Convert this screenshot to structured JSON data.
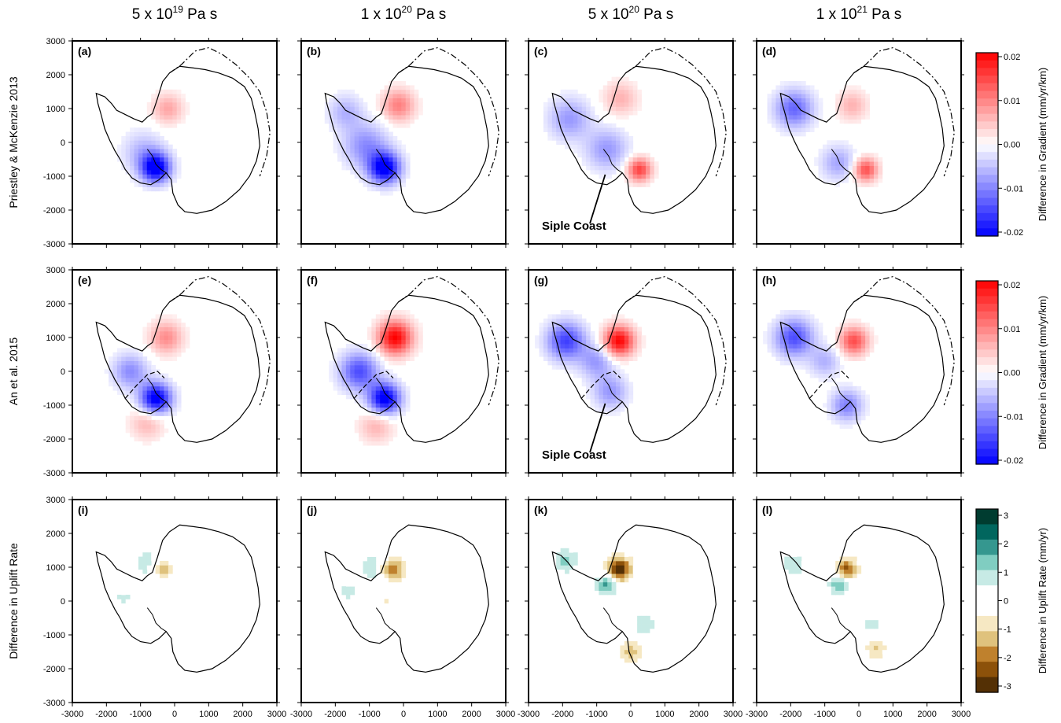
{
  "chart_data": {
    "type": "heatmap",
    "x_ticks": [
      -3000,
      -2000,
      -1000,
      0,
      1000,
      2000,
      3000
    ],
    "y_ticks": [
      3000,
      2000,
      1000,
      0,
      -1000,
      -2000,
      -3000
    ],
    "xlim": [
      -3000,
      3000
    ],
    "ylim": [
      -3000,
      3000
    ],
    "columns": [
      {
        "base": "5 x 10",
        "exp": "19",
        "unit": " Pa s"
      },
      {
        "base": "1 x 10",
        "exp": "20",
        "unit": " Pa s"
      },
      {
        "base": "5 x 10",
        "exp": "20",
        "unit": " Pa s"
      },
      {
        "base": "1 x 10",
        "exp": "21",
        "unit": " Pa s"
      }
    ],
    "rows": [
      {
        "label": "Priestley & McKenzie 2013",
        "colorbar": "gradient",
        "panels": [
          "(a)",
          "(b)",
          "(c)",
          "(d)"
        ]
      },
      {
        "label": "An et al. 2015",
        "colorbar": "gradient",
        "panels": [
          "(e)",
          "(f)",
          "(g)",
          "(h)"
        ]
      },
      {
        "label": "Difference in Uplift Rate",
        "colorbar": "uplift",
        "panels": [
          "(i)",
          "(j)",
          "(k)",
          "(l)"
        ]
      }
    ],
    "annotations": [
      {
        "panel": "(c)",
        "text": "Siple Coast",
        "x": -750,
        "y": -950
      },
      {
        "panel": "(g)",
        "text": "Siple Coast",
        "x": -750,
        "y": -950
      }
    ],
    "colorbars": {
      "gradient": {
        "label": "Difference in Gradient (mm/yr/km)",
        "range": [
          -0.02,
          0.02
        ],
        "ticks": [
          "0.02",
          "0.01",
          "0.00",
          "-0.01",
          "-0.02"
        ],
        "colors": [
          "#0000ff",
          "#ffffff",
          "#ff0000"
        ]
      },
      "uplift": {
        "label": "Difference in Uplift Rate (mm/yr)",
        "range": [
          -3,
          3
        ],
        "ticks": [
          "3",
          "2",
          "1",
          "0",
          "-1",
          "-2",
          "-3"
        ],
        "levels": [
          "#543005",
          "#8c510a",
          "#bf812d",
          "#dfc27d",
          "#f6e8c3",
          "#ffffff",
          "#ffffff",
          "#c7eae5",
          "#80cdc1",
          "#35978f",
          "#01665e",
          "#003c30"
        ]
      }
    },
    "anomalies": [
      [
        [
          {
            "x": -550,
            "y": -750,
            "r": 420,
            "v": -0.022
          },
          {
            "x": -900,
            "y": -300,
            "r": 600,
            "v": -0.006
          },
          {
            "x": -200,
            "y": 1000,
            "r": 450,
            "v": 0.007
          }
        ],
        [
          {
            "x": -550,
            "y": -750,
            "r": 450,
            "v": -0.022
          },
          {
            "x": -1100,
            "y": -100,
            "r": 650,
            "v": -0.009
          },
          {
            "x": -150,
            "y": 1100,
            "r": 480,
            "v": 0.01
          },
          {
            "x": -1700,
            "y": 900,
            "r": 500,
            "v": -0.006
          }
        ],
        [
          {
            "x": 250,
            "y": -800,
            "r": 350,
            "v": 0.015
          },
          {
            "x": -700,
            "y": -200,
            "r": 600,
            "v": -0.008
          },
          {
            "x": -1800,
            "y": 700,
            "r": 600,
            "v": -0.008
          },
          {
            "x": -300,
            "y": 1300,
            "r": 500,
            "v": 0.006
          }
        ],
        [
          {
            "x": 200,
            "y": -800,
            "r": 350,
            "v": 0.014
          },
          {
            "x": -1900,
            "y": 1000,
            "r": 550,
            "v": -0.012
          },
          {
            "x": -600,
            "y": -600,
            "r": 500,
            "v": -0.007
          },
          {
            "x": -200,
            "y": 1100,
            "r": 450,
            "v": 0.006
          }
        ]
      ],
      [
        [
          {
            "x": -550,
            "y": -800,
            "r": 450,
            "v": -0.022
          },
          {
            "x": -1300,
            "y": 0,
            "r": 500,
            "v": -0.009
          },
          {
            "x": -250,
            "y": 1000,
            "r": 480,
            "v": 0.009
          },
          {
            "x": -800,
            "y": -1500,
            "r": 500,
            "v": 0.006
          }
        ],
        [
          {
            "x": -550,
            "y": -800,
            "r": 450,
            "v": -0.022
          },
          {
            "x": -1300,
            "y": 0,
            "r": 550,
            "v": -0.014
          },
          {
            "x": -250,
            "y": 1000,
            "r": 500,
            "v": 0.02
          },
          {
            "x": -800,
            "y": -1600,
            "r": 500,
            "v": 0.006
          }
        ],
        [
          {
            "x": -350,
            "y": 900,
            "r": 450,
            "v": 0.02
          },
          {
            "x": -1900,
            "y": 900,
            "r": 550,
            "v": -0.015
          },
          {
            "x": -600,
            "y": -600,
            "r": 500,
            "v": -0.008
          },
          {
            "x": -1000,
            "y": 300,
            "r": 500,
            "v": -0.008
          }
        ],
        [
          {
            "x": -150,
            "y": 900,
            "r": 420,
            "v": 0.014
          },
          {
            "x": -1900,
            "y": 1000,
            "r": 550,
            "v": -0.014
          },
          {
            "x": -350,
            "y": -1000,
            "r": 450,
            "v": -0.01
          },
          {
            "x": -1000,
            "y": 300,
            "r": 450,
            "v": -0.006
          }
        ]
      ],
      [
        [
          {
            "x": -350,
            "y": 950,
            "r": 300,
            "v": -1.6
          },
          {
            "x": -700,
            "y": 1100,
            "r": 500,
            "v": 0.8
          },
          {
            "x": -1500,
            "y": 100,
            "r": 300,
            "v": 0.6
          }
        ],
        [
          {
            "x": -350,
            "y": 950,
            "r": 350,
            "v": -2.6
          },
          {
            "x": -750,
            "y": 1000,
            "r": 560,
            "v": 0.9
          },
          {
            "x": -1600,
            "y": 300,
            "r": 300,
            "v": 0.7
          },
          {
            "x": -500,
            "y": 0,
            "r": 300,
            "v": -0.6
          }
        ],
        [
          {
            "x": -350,
            "y": 950,
            "r": 350,
            "v": -3.0
          },
          {
            "x": -700,
            "y": 500,
            "r": 300,
            "v": 1.8
          },
          {
            "x": 0,
            "y": -1500,
            "r": 300,
            "v": -1.4
          },
          {
            "x": 400,
            "y": -700,
            "r": 350,
            "v": 0.9
          },
          {
            "x": -1900,
            "y": 1200,
            "r": 350,
            "v": 1.2
          }
        ],
        [
          {
            "x": -350,
            "y": 950,
            "r": 320,
            "v": -2.2
          },
          {
            "x": -600,
            "y": 500,
            "r": 280,
            "v": 1.6
          },
          {
            "x": 500,
            "y": -1400,
            "r": 300,
            "v": -1.1
          },
          {
            "x": 400,
            "y": -700,
            "r": 300,
            "v": 0.7
          },
          {
            "x": -1900,
            "y": 1100,
            "r": 330,
            "v": 1.0
          }
        ]
      ]
    ]
  }
}
